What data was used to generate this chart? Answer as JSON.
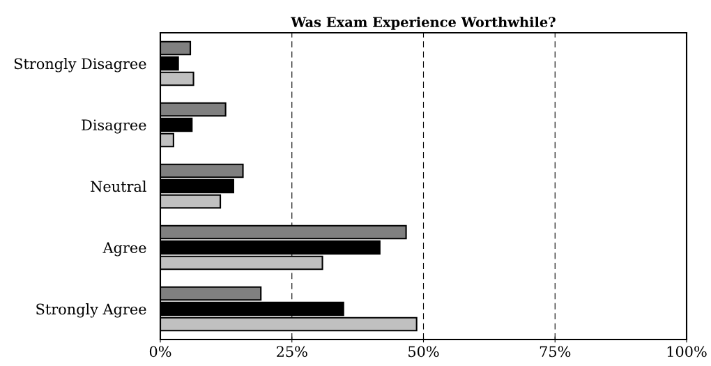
{
  "chart_data": {
    "type": "bar",
    "orientation": "horizontal",
    "title": "Was Exam Experience Worthwhile?",
    "categories": [
      "Strongly Disagree",
      "Disagree",
      "Neutral",
      "Agree",
      "Strongly Agree"
    ],
    "series": [
      {
        "color": "#808080",
        "values": [
          5.7,
          12.4,
          15.7,
          46.7,
          19.1
        ]
      },
      {
        "color": "#000000",
        "values": [
          3.4,
          6.0,
          13.9,
          41.7,
          34.8
        ]
      },
      {
        "color": "#c0c0c0",
        "values": [
          6.3,
          2.5,
          11.4,
          30.8,
          48.7
        ]
      }
    ],
    "xlim": [
      0,
      100
    ],
    "xticks": [
      {
        "value": 0,
        "label": "0%"
      },
      {
        "value": 25,
        "label": "25%"
      },
      {
        "value": 50,
        "label": "50%"
      },
      {
        "value": 75,
        "label": "75%"
      },
      {
        "value": 100,
        "label": "100%"
      }
    ],
    "grid": "x"
  }
}
